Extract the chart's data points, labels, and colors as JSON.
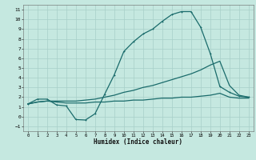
{
  "title": "",
  "xlabel": "Humidex (Indice chaleur)",
  "ylabel": "",
  "bg_color": "#c5e8e0",
  "grid_color": "#a8cfc8",
  "line_color": "#1a6b6b",
  "xlim": [
    -0.5,
    23.5
  ],
  "ylim": [
    -1.5,
    11.5
  ],
  "xticks": [
    0,
    1,
    2,
    3,
    4,
    5,
    6,
    7,
    8,
    9,
    10,
    11,
    12,
    13,
    14,
    15,
    16,
    17,
    18,
    19,
    20,
    21,
    22,
    23
  ],
  "yticks": [
    -1,
    0,
    1,
    2,
    3,
    4,
    5,
    6,
    7,
    8,
    9,
    10,
    11
  ],
  "line1_x": [
    0,
    1,
    2,
    3,
    4,
    5,
    6,
    7,
    8,
    9,
    10,
    11,
    12,
    13,
    14,
    15,
    16,
    17,
    18,
    19,
    20,
    21,
    22,
    23
  ],
  "line1_y": [
    1.3,
    1.8,
    1.8,
    1.2,
    1.1,
    -0.3,
    -0.35,
    0.3,
    2.3,
    4.3,
    6.7,
    7.7,
    8.5,
    9.0,
    9.8,
    10.5,
    10.8,
    10.8,
    9.2,
    6.5,
    3.1,
    2.5,
    2.1,
    2.0
  ],
  "line2_x": [
    0,
    1,
    2,
    3,
    4,
    5,
    6,
    7,
    8,
    9,
    10,
    11,
    12,
    13,
    14,
    15,
    16,
    17,
    18,
    19,
    20,
    21,
    22,
    23
  ],
  "line2_y": [
    1.3,
    1.5,
    1.6,
    1.6,
    1.6,
    1.6,
    1.7,
    1.8,
    2.0,
    2.2,
    2.5,
    2.7,
    3.0,
    3.2,
    3.5,
    3.8,
    4.1,
    4.4,
    4.8,
    5.3,
    5.7,
    3.2,
    2.2,
    2.0
  ],
  "line3_x": [
    0,
    1,
    2,
    3,
    4,
    5,
    6,
    7,
    8,
    9,
    10,
    11,
    12,
    13,
    14,
    15,
    16,
    17,
    18,
    19,
    20,
    21,
    22,
    23
  ],
  "line3_y": [
    1.3,
    1.5,
    1.6,
    1.5,
    1.4,
    1.4,
    1.4,
    1.5,
    1.5,
    1.6,
    1.6,
    1.7,
    1.7,
    1.8,
    1.9,
    1.9,
    2.0,
    2.0,
    2.1,
    2.2,
    2.4,
    2.0,
    1.9,
    1.9
  ]
}
